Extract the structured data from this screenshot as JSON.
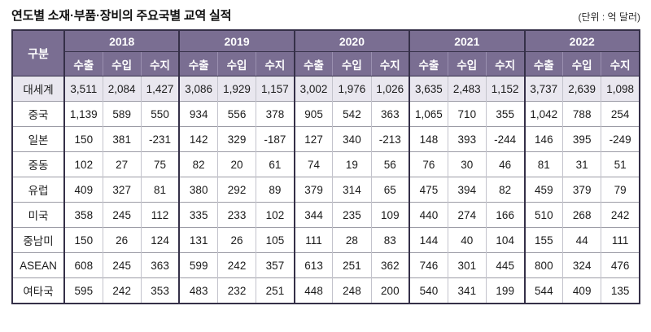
{
  "chart_data": {
    "type": "table",
    "title": "연도별 소재·부품·장비의 주요국별 교역 실적",
    "unit": "(단위 : 억 달러)",
    "row_header": "구분",
    "column_groups": [
      "2018",
      "2019",
      "2020",
      "2021",
      "2022"
    ],
    "sub_columns": [
      "수출",
      "수입",
      "수지"
    ],
    "rows": [
      {
        "label": "대세계",
        "highlight": true,
        "values": [
          "3,511",
          "2,084",
          "1,427",
          "3,086",
          "1,929",
          "1,157",
          "3,002",
          "1,976",
          "1,026",
          "3,635",
          "2,483",
          "1,152",
          "3,737",
          "2,639",
          "1,098"
        ]
      },
      {
        "label": "중국",
        "highlight": false,
        "values": [
          "1,139",
          "589",
          "550",
          "934",
          "556",
          "378",
          "905",
          "542",
          "363",
          "1,065",
          "710",
          "355",
          "1,042",
          "788",
          "254"
        ]
      },
      {
        "label": "일본",
        "highlight": false,
        "values": [
          "150",
          "381",
          "-231",
          "142",
          "329",
          "-187",
          "127",
          "340",
          "-213",
          "148",
          "393",
          "-244",
          "146",
          "395",
          "-249"
        ]
      },
      {
        "label": "중동",
        "highlight": false,
        "values": [
          "102",
          "27",
          "75",
          "82",
          "20",
          "61",
          "74",
          "19",
          "56",
          "76",
          "30",
          "46",
          "81",
          "31",
          "51"
        ]
      },
      {
        "label": "유럽",
        "highlight": false,
        "values": [
          "409",
          "327",
          "81",
          "380",
          "292",
          "89",
          "379",
          "314",
          "65",
          "475",
          "394",
          "82",
          "459",
          "379",
          "79"
        ]
      },
      {
        "label": "미국",
        "highlight": false,
        "values": [
          "358",
          "245",
          "112",
          "335",
          "233",
          "102",
          "344",
          "235",
          "109",
          "440",
          "274",
          "166",
          "510",
          "268",
          "242"
        ]
      },
      {
        "label": "중남미",
        "highlight": false,
        "values": [
          "150",
          "26",
          "124",
          "131",
          "26",
          "105",
          "111",
          "28",
          "83",
          "144",
          "40",
          "104",
          "155",
          "44",
          "111"
        ]
      },
      {
        "label": "ASEAN",
        "highlight": false,
        "values": [
          "608",
          "245",
          "363",
          "599",
          "242",
          "357",
          "613",
          "251",
          "362",
          "746",
          "301",
          "445",
          "800",
          "324",
          "476"
        ]
      },
      {
        "label": "여타국",
        "highlight": false,
        "values": [
          "595",
          "242",
          "353",
          "483",
          "232",
          "251",
          "448",
          "248",
          "200",
          "540",
          "341",
          "199",
          "544",
          "409",
          "135"
        ]
      }
    ]
  },
  "colors": {
    "header_bg": "#7a6e92",
    "header_text": "#ffffff",
    "header_sep": "#9a90b0",
    "dark_border": "#353048",
    "light_border": "#c3c3cc",
    "row_border": "#9c9ca6",
    "highlight_bg": "#e9e7ef"
  }
}
